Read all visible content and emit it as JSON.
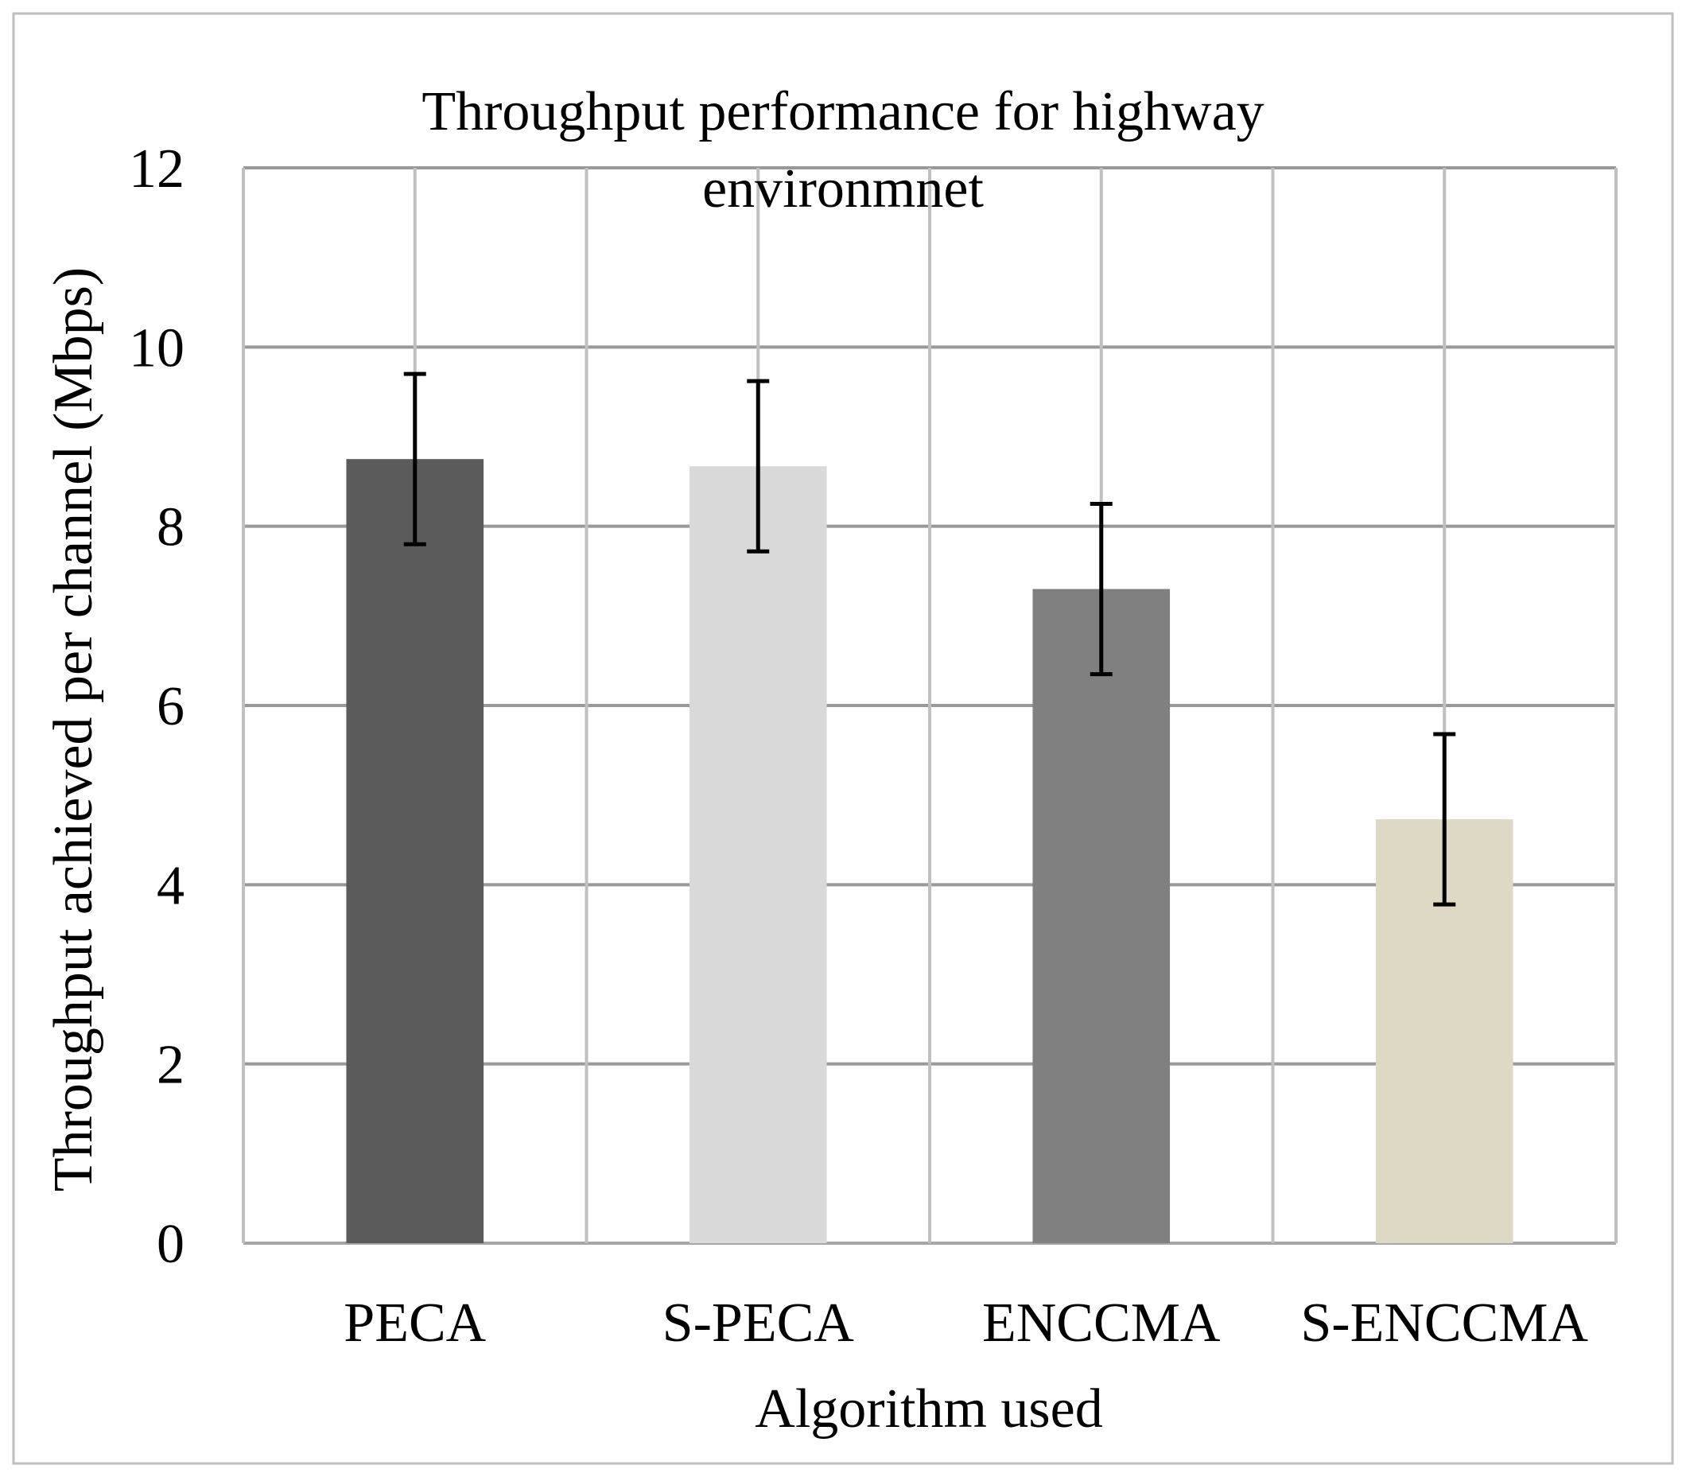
{
  "chart_data": {
    "type": "bar",
    "title_lines": [
      "Throughput performance for highway",
      "environmnet"
    ],
    "xlabel": "Algorithm used",
    "ylabel": "Throughput achieved per channel (Mbps)",
    "categories": [
      "PECA",
      "S-PECA",
      "ENCCMA",
      "S-ENCCMA"
    ],
    "values": [
      8.75,
      8.67,
      7.3,
      4.73
    ],
    "error_bars": [
      0.95,
      0.95,
      0.95,
      0.95
    ],
    "bar_colors": [
      "#5b5b5b",
      "#d9d9d9",
      "#808080",
      "#ddd9c4"
    ],
    "ylim": [
      0,
      12
    ],
    "yticks": [
      "0",
      "2",
      "4",
      "6",
      "8",
      "10",
      "12"
    ],
    "grid": true,
    "legend": "none"
  }
}
